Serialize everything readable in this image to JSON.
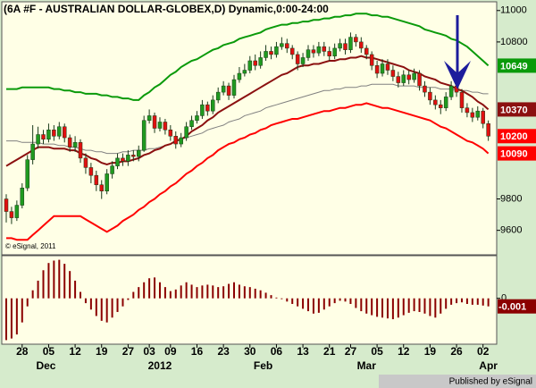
{
  "chart_data": [
    {
      "type": "candlestick",
      "title": "(6A #F - AUSTRALIAN DOLLAR-GLOBEX,D) Dynamic,0:00-24:00",
      "source": "© eSignal, 2011",
      "up_color": "#1f9a1f",
      "down_color": "#e01010",
      "close_label_color": "#ff0000",
      "ylim": [
        9450,
        11050
      ],
      "yticks": [
        9600,
        9800,
        10800,
        11000
      ],
      "open": [
        9800,
        9720,
        9680,
        9760,
        9870,
        10050,
        10150,
        10210,
        10180,
        10240,
        10200,
        10260,
        10190,
        10130,
        10160,
        10060,
        10000,
        9950,
        9890,
        9850,
        9960,
        10010,
        10060,
        10040,
        10080,
        10070,
        10110,
        10300,
        10330,
        10250,
        10290,
        10240,
        10200,
        10150,
        10190,
        10260,
        10300,
        10330,
        10400,
        10360,
        10430,
        10480,
        10520,
        10460,
        10560,
        10600,
        10620,
        10680,
        10650,
        10700,
        10740,
        10720,
        10770,
        10790,
        10760,
        10720,
        10660,
        10700,
        10750,
        10730,
        10770,
        10740,
        10710,
        10760,
        10790,
        10750,
        10830,
        10800,
        10760,
        10720,
        10650,
        10600,
        10660,
        10620,
        10580,
        10540,
        10590,
        10560,
        10600,
        10520,
        10480,
        10430,
        10400,
        10380,
        10450,
        10520,
        10480,
        10380,
        10350,
        10320,
        10360,
        10280
      ],
      "high": [
        9830,
        9750,
        9790,
        9900,
        10080,
        10270,
        10260,
        10240,
        10280,
        10270,
        10290,
        10280,
        10210,
        10200,
        10180,
        10090,
        10030,
        9980,
        9920,
        9990,
        10040,
        10090,
        10090,
        10110,
        10110,
        10140,
        10330,
        10370,
        10350,
        10320,
        10310,
        10270,
        10230,
        10220,
        10290,
        10330,
        10360,
        10430,
        10420,
        10460,
        10510,
        10550,
        10540,
        10590,
        10640,
        10660,
        10710,
        10720,
        10740,
        10780,
        10770,
        10800,
        10830,
        10820,
        10780,
        10740,
        10730,
        10780,
        10780,
        10800,
        10800,
        10770,
        10790,
        10820,
        10820,
        10860,
        10850,
        10830,
        10780,
        10740,
        10680,
        10690,
        10690,
        10650,
        10610,
        10620,
        10620,
        10630,
        10620,
        10550,
        10510,
        10460,
        10430,
        10480,
        10550,
        10540,
        10500,
        10410,
        10380,
        10390,
        10380,
        10300
      ],
      "low": [
        9650,
        9640,
        9660,
        9740,
        9850,
        10020,
        10120,
        10150,
        10160,
        10170,
        10180,
        10160,
        10100,
        10100,
        10030,
        9960,
        9900,
        9850,
        9800,
        9830,
        9930,
        9990,
        10010,
        10010,
        10040,
        10040,
        10100,
        10280,
        10220,
        10230,
        10210,
        10170,
        10120,
        10130,
        10170,
        10240,
        10280,
        10310,
        10330,
        10340,
        10410,
        10460,
        10430,
        10440,
        10540,
        10580,
        10600,
        10620,
        10630,
        10680,
        10690,
        10700,
        10750,
        10730,
        10690,
        10620,
        10640,
        10680,
        10700,
        10710,
        10710,
        10680,
        10690,
        10740,
        10720,
        10730,
        10770,
        10730,
        10690,
        10620,
        10570,
        10580,
        10590,
        10550,
        10510,
        10520,
        10530,
        10540,
        10490,
        10450,
        10400,
        10370,
        10340,
        10360,
        10430,
        10450,
        10350,
        10320,
        10290,
        10300,
        10250,
        10170
      ],
      "close": [
        9720,
        9680,
        9760,
        9870,
        10050,
        10150,
        10210,
        10180,
        10240,
        10200,
        10260,
        10190,
        10130,
        10160,
        10060,
        10000,
        9950,
        9890,
        9850,
        9960,
        10010,
        10060,
        10040,
        10080,
        10070,
        10110,
        10300,
        10330,
        10250,
        10290,
        10240,
        10200,
        10150,
        10190,
        10260,
        10300,
        10330,
        10400,
        10360,
        10430,
        10480,
        10520,
        10460,
        10560,
        10600,
        10620,
        10680,
        10650,
        10700,
        10740,
        10720,
        10770,
        10790,
        10760,
        10720,
        10660,
        10700,
        10750,
        10730,
        10770,
        10740,
        10710,
        10760,
        10790,
        10750,
        10830,
        10800,
        10760,
        10720,
        10650,
        10600,
        10660,
        10620,
        10580,
        10540,
        10590,
        10560,
        10600,
        10520,
        10480,
        10430,
        10400,
        10380,
        10450,
        10520,
        10480,
        10380,
        10350,
        10320,
        10360,
        10280,
        10200
      ],
      "series": [
        {
          "color": "#808080",
          "last_label": false,
          "values": [
            10170,
            10170,
            10170,
            10160,
            10160,
            10160,
            10160,
            10150,
            10150,
            10150,
            10140,
            10140,
            10130,
            10130,
            10120,
            10110,
            10110,
            10100,
            10100,
            10090,
            10090,
            10090,
            10100,
            10100,
            10110,
            10110,
            10110,
            10120,
            10120,
            10130,
            10140,
            10150,
            10170,
            10180,
            10190,
            10200,
            10210,
            10220,
            10240,
            10250,
            10260,
            10270,
            10290,
            10300,
            10310,
            10330,
            10340,
            10350,
            10360,
            10380,
            10390,
            10400,
            10410,
            10420,
            10430,
            10440,
            10450,
            10460,
            10470,
            10480,
            10490,
            10490,
            10500,
            10500,
            10510,
            10510,
            10510,
            10520,
            10520,
            10530,
            10530,
            10530,
            10530,
            10530,
            10520,
            10520,
            10520,
            10520,
            10510,
            10510,
            10510,
            10510,
            10500,
            10500,
            10500,
            10490,
            10490,
            10490,
            10480,
            10480,
            10470,
            10470
          ]
        },
        {
          "color": "#0a9a0a",
          "last_label": true,
          "values": [
            10500,
            10500,
            10500,
            10510,
            10510,
            10510,
            10510,
            10510,
            10510,
            10500,
            10500,
            10490,
            10490,
            10480,
            10480,
            10470,
            10470,
            10470,
            10460,
            10460,
            10450,
            10450,
            10440,
            10440,
            10430,
            10430,
            10460,
            10480,
            10510,
            10530,
            10560,
            10590,
            10610,
            10640,
            10660,
            10680,
            10690,
            10710,
            10730,
            10750,
            10760,
            10780,
            10790,
            10800,
            10820,
            10830,
            10840,
            10850,
            10860,
            10880,
            10890,
            10900,
            10910,
            10910,
            10920,
            10920,
            10930,
            10930,
            10940,
            10940,
            10950,
            10950,
            10960,
            10960,
            10970,
            10970,
            10980,
            10980,
            10980,
            10970,
            10970,
            10960,
            10960,
            10950,
            10940,
            10930,
            10920,
            10910,
            10900,
            10880,
            10870,
            10860,
            10850,
            10840,
            10820,
            10810,
            10790,
            10770,
            10740,
            10710,
            10680,
            10649
          ]
        },
        {
          "color": "#8b1010",
          "last_label": true,
          "values": [
            10010,
            10030,
            10050,
            10070,
            10090,
            10110,
            10130,
            10130,
            10130,
            10120,
            10120,
            10120,
            10110,
            10110,
            10090,
            10080,
            10060,
            10050,
            10030,
            10020,
            10030,
            10030,
            10040,
            10040,
            10050,
            10060,
            10080,
            10090,
            10110,
            10120,
            10140,
            10150,
            10170,
            10180,
            10200,
            10230,
            10250,
            10270,
            10300,
            10320,
            10350,
            10370,
            10390,
            10410,
            10430,
            10450,
            10470,
            10490,
            10510,
            10530,
            10550,
            10570,
            10590,
            10600,
            10620,
            10640,
            10650,
            10650,
            10660,
            10660,
            10670,
            10680,
            10680,
            10690,
            10690,
            10700,
            10700,
            10710,
            10700,
            10700,
            10690,
            10680,
            10670,
            10660,
            10650,
            10640,
            10620,
            10610,
            10600,
            10580,
            10570,
            10560,
            10540,
            10530,
            10520,
            10500,
            10490,
            10470,
            10450,
            10420,
            10400,
            10370
          ]
        },
        {
          "color": "#ff0000",
          "last_label": true,
          "values": [
            9550,
            9550,
            9540,
            9540,
            9540,
            9570,
            9600,
            9630,
            9660,
            9690,
            9690,
            9690,
            9690,
            9690,
            9690,
            9670,
            9650,
            9630,
            9610,
            9590,
            9610,
            9630,
            9660,
            9680,
            9700,
            9730,
            9750,
            9780,
            9800,
            9830,
            9850,
            9880,
            9900,
            9930,
            9960,
            9980,
            10010,
            10030,
            10060,
            10080,
            10110,
            10130,
            10150,
            10160,
            10180,
            10190,
            10210,
            10220,
            10240,
            10250,
            10270,
            10280,
            10290,
            10300,
            10310,
            10310,
            10320,
            10330,
            10340,
            10350,
            10360,
            10360,
            10370,
            10380,
            10380,
            10390,
            10400,
            10400,
            10410,
            10400,
            10390,
            10380,
            10380,
            10370,
            10360,
            10350,
            10340,
            10330,
            10320,
            10310,
            10300,
            10280,
            10260,
            10250,
            10230,
            10210,
            10190,
            10170,
            10160,
            10140,
            10120,
            10090
          ]
        }
      ]
    },
    {
      "type": "bar",
      "color": "#8b0000",
      "ylim": [
        -0.0056,
        0.0052
      ],
      "yticks": [
        0
      ],
      "categories": [
        null,
        null,
        null,
        "28",
        null,
        null,
        null,
        null,
        "05",
        null,
        null,
        null,
        null,
        "12",
        null,
        null,
        null,
        null,
        "19",
        null,
        null,
        null,
        null,
        "27",
        null,
        null,
        null,
        "03",
        null,
        null,
        null,
        "09",
        null,
        null,
        null,
        null,
        "16",
        null,
        null,
        null,
        null,
        "23",
        null,
        null,
        null,
        null,
        "30",
        null,
        null,
        null,
        null,
        "06",
        null,
        null,
        null,
        null,
        "13",
        null,
        null,
        null,
        null,
        "21",
        null,
        null,
        null,
        "27",
        null,
        null,
        null,
        null,
        "05",
        null,
        null,
        null,
        null,
        "12",
        null,
        null,
        null,
        null,
        "19",
        null,
        null,
        null,
        null,
        "26",
        null,
        null,
        null,
        null,
        "02",
        null
      ],
      "month_labels": [
        {
          "value": 7.5,
          "label": "Dec"
        },
        {
          "value": 29,
          "label": "2012"
        },
        {
          "value": 48.5,
          "label": "Feb"
        },
        {
          "value": 68,
          "label": "Mar"
        },
        {
          "value": 91,
          "label": "Apr"
        }
      ],
      "values": [
        -0.0052,
        -0.005,
        -0.0045,
        -0.003,
        -0.001,
        0.001,
        0.0022,
        0.0035,
        0.0044,
        0.0047,
        0.0048,
        0.0043,
        0.0034,
        0.0022,
        0.0008,
        -0.0006,
        -0.0014,
        -0.0022,
        -0.0028,
        -0.003,
        -0.0024,
        -0.0017,
        -0.001,
        -0.0002,
        0.0008,
        0.0014,
        0.002,
        0.0025,
        0.0026,
        0.002,
        0.0014,
        0.0009,
        0.0011,
        0.0016,
        0.002,
        0.0017,
        0.0014,
        0.0016,
        0.0017,
        0.0016,
        0.0014,
        0.0015,
        0.0018,
        0.002,
        0.0017,
        0.0015,
        0.0014,
        0.0012,
        0.001,
        0.0007,
        0.0004,
        0.0001,
        -0.0001,
        -0.0004,
        -0.0007,
        -0.001,
        -0.0013,
        -0.0016,
        -0.0019,
        -0.0018,
        -0.0014,
        -0.001,
        -0.0006,
        -0.0003,
        -0.0004,
        -0.0007,
        -0.0012,
        -0.0016,
        -0.0019,
        -0.0021,
        -0.0023,
        -0.0024,
        -0.0025,
        -0.0026,
        -0.0024,
        -0.0021,
        -0.0018,
        -0.0016,
        -0.0017,
        -0.0019,
        -0.0022,
        -0.0024,
        -0.0019,
        -0.0013,
        -0.0008,
        -0.0006,
        -0.0005,
        -0.0007,
        -0.0008,
        -0.0008,
        -0.0009,
        -0.001
      ]
    }
  ],
  "footer": "Published by eSignal"
}
